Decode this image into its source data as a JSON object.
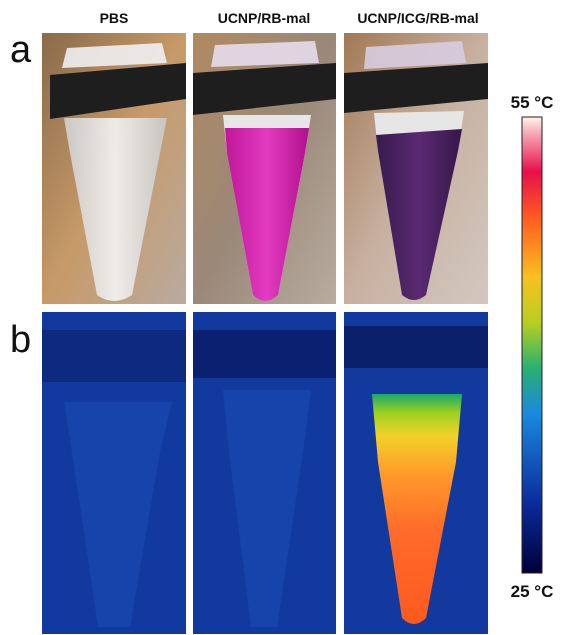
{
  "panel_labels": [
    "a",
    "b"
  ],
  "columns": [
    "PBS",
    "UCNP/RB-mal",
    "UCNP/ICG/RB-mal"
  ],
  "colorbar": {
    "max_label": "55 °C",
    "min_label": "25 °C"
  }
}
